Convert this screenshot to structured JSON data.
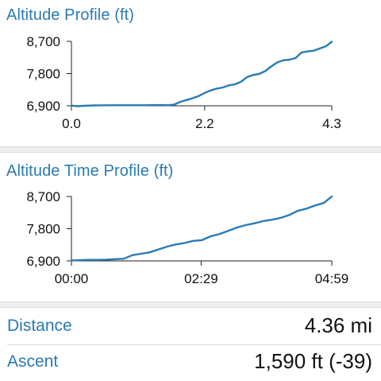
{
  "chart_data": [
    {
      "type": "line",
      "title": "Altitude Profile (ft)",
      "xlabel": "",
      "ylabel": "",
      "xlim": [
        0,
        4.3
      ],
      "ylim": [
        6900,
        8700
      ],
      "x_ticks": [
        "0.0",
        "2.2",
        "4.3"
      ],
      "y_ticks": [
        "8,700",
        "7,800",
        "6,900"
      ],
      "x_tick_values": [
        0,
        2.2,
        4.3
      ],
      "y_tick_values": [
        8700,
        7800,
        6900
      ],
      "color": "#2a7ab3",
      "x": [
        0,
        0.1,
        0.2,
        0.4,
        0.6,
        0.8,
        1.0,
        1.2,
        1.4,
        1.5,
        1.6,
        1.7,
        1.8,
        1.9,
        2.0,
        2.1,
        2.2,
        2.3,
        2.4,
        2.5,
        2.6,
        2.7,
        2.8,
        2.9,
        3.0,
        3.1,
        3.2,
        3.3,
        3.4,
        3.5,
        3.6,
        3.7,
        3.8,
        3.9,
        4.0,
        4.1,
        4.2,
        4.3
      ],
      "y": [
        6905,
        6890,
        6900,
        6910,
        6915,
        6915,
        6915,
        6915,
        6920,
        6920,
        6915,
        6935,
        7010,
        7060,
        7110,
        7170,
        7260,
        7330,
        7380,
        7410,
        7470,
        7500,
        7570,
        7700,
        7760,
        7790,
        7870,
        8000,
        8110,
        8170,
        8190,
        8230,
        8390,
        8420,
        8440,
        8500,
        8560,
        8690
      ]
    },
    {
      "type": "line",
      "title": "Altitude Time Profile (ft)",
      "xlabel": "",
      "ylabel": "",
      "xlim": [
        0,
        299
      ],
      "ylim": [
        6900,
        8700
      ],
      "x_ticks": [
        "00:00",
        "02:29",
        "04:59"
      ],
      "y_ticks": [
        "8,700",
        "7,800",
        "6,900"
      ],
      "x_tick_values": [
        0,
        149,
        299
      ],
      "y_tick_values": [
        8700,
        7800,
        6900
      ],
      "color": "#2a7ab3",
      "x": [
        0,
        10,
        20,
        30,
        40,
        50,
        60,
        70,
        80,
        90,
        100,
        110,
        120,
        130,
        140,
        150,
        160,
        170,
        180,
        190,
        200,
        210,
        220,
        230,
        240,
        250,
        260,
        270,
        280,
        290,
        299
      ],
      "y": [
        6910,
        6920,
        6930,
        6930,
        6935,
        6950,
        6960,
        7060,
        7100,
        7140,
        7220,
        7300,
        7360,
        7400,
        7460,
        7480,
        7590,
        7650,
        7740,
        7830,
        7900,
        7950,
        8010,
        8050,
        8100,
        8180,
        8300,
        8360,
        8450,
        8520,
        8700
      ]
    }
  ],
  "stats": {
    "distance_label": "Distance",
    "distance_value": "4.36 mi",
    "ascent_label": "Ascent",
    "ascent_value": "1,590 ft (-39)"
  }
}
